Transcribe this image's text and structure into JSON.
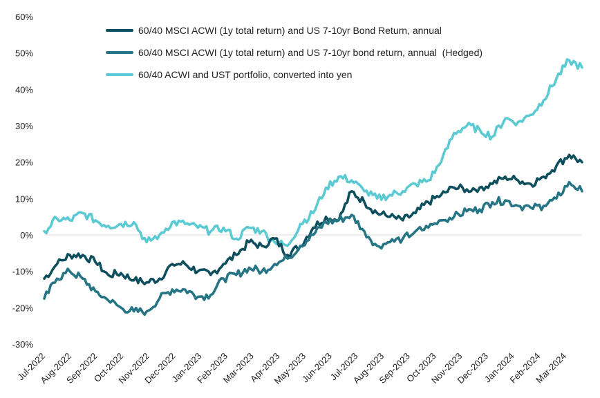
{
  "chart_data": {
    "type": "line",
    "title": "",
    "xlabel": "",
    "ylabel": "",
    "ylim": [
      -30,
      60
    ],
    "yticks": [
      -30,
      -20,
      -10,
      0,
      10,
      20,
      30,
      40,
      50,
      60
    ],
    "ytick_labels": [
      "-30%",
      "-20%",
      "-10%",
      "0%",
      "10%",
      "20%",
      "30%",
      "40%",
      "50%",
      "60%"
    ],
    "x_tick_labels": [
      "Jul-2022",
      "Aug-2022",
      "Sep-2022",
      "Oct-2022",
      "Nov-2022",
      "Dec-2022",
      "Jan-2023",
      "Feb-2023",
      "Mar-2023",
      "Apr-2023",
      "May-2023",
      "Jun-2023",
      "Jul-2023",
      "Aug-2023",
      "Sep-2023",
      "Oct-2023",
      "Nov-2023",
      "Dec-2023",
      "Jan-2024",
      "Feb-2024",
      "Mar-2024"
    ],
    "grid": false,
    "legend_position": "top-center",
    "x_points_note_months": "Jul-2022 .. Mar-2024 in half-month steps",
    "x": [
      "Jul-2022",
      "mid Jul-2022",
      "Aug-2022",
      "mid Aug-2022",
      "Sep-2022",
      "mid Sep-2022",
      "Oct-2022",
      "mid Oct-2022",
      "Nov-2022",
      "mid Nov-2022",
      "Dec-2022",
      "mid Dec-2022",
      "Jan-2023",
      "mid Jan-2023",
      "Feb-2023",
      "mid Feb-2023",
      "Mar-2023",
      "mid Mar-2023",
      "Apr-2023",
      "mid Apr-2023",
      "May-2023",
      "mid May-2023",
      "Jun-2023",
      "mid Jun-2023",
      "Jul-2023",
      "mid Jul-2023",
      "Aug-2023",
      "mid Aug-2023",
      "Sep-2023",
      "mid Sep-2023",
      "Oct-2023",
      "mid Oct-2023",
      "Nov-2023",
      "mid Nov-2023",
      "Dec-2023",
      "mid Dec-2023",
      "Jan-2024",
      "mid Jan-2024",
      "Feb-2024",
      "mid Feb-2024",
      "Mar-2024",
      "mid Mar-2024",
      "end Mar-2024"
    ],
    "series": [
      {
        "name": "60/40 MSCI ACWI (1y total return) and US 7-10yr Bond Return, annual",
        "color": "#0d4f5c",
        "values": [
          -12,
          -8,
          -5.5,
          -5.5,
          -7.5,
          -11,
          -10.5,
          -12.5,
          -13,
          -12,
          -8,
          -8,
          -10,
          -11,
          -8,
          -5.5,
          -2,
          -3,
          -1,
          -5.5,
          -3,
          2,
          5,
          4,
          12,
          9,
          6,
          5,
          4,
          6,
          9,
          11,
          13,
          12.5,
          13,
          14,
          16,
          15,
          14,
          16,
          19,
          22,
          20
        ]
      },
      {
        "name": "60/40 MSCI ACWI (1y total return) and US 7-10yr bond return, annual  (Hedged)",
        "color": "#267585",
        "values": [
          -17.5,
          -12,
          -10,
          -12,
          -15.5,
          -18,
          -20,
          -21,
          -21,
          -17.5,
          -15,
          -15,
          -17,
          -16.5,
          -12,
          -11,
          -9,
          -10,
          -8,
          -6.5,
          -3,
          0,
          3.5,
          4,
          5.5,
          1,
          -3,
          -2,
          -1,
          1,
          2,
          4,
          5,
          6.5,
          7,
          9,
          9.5,
          8,
          7.5,
          8,
          10,
          14.5,
          12
        ]
      },
      {
        "name": "60/40 ACWI and UST portfolio, converted into yen",
        "color": "#5ccad2",
        "values": [
          1,
          4.5,
          4,
          6,
          4,
          2.5,
          3,
          3.5,
          -2,
          0,
          3.5,
          3,
          2,
          1,
          2,
          -1,
          2,
          1,
          -2,
          -3,
          3,
          6,
          13,
          16,
          15,
          12,
          10,
          11,
          12,
          14,
          15,
          20,
          28,
          30,
          29,
          27,
          32,
          31,
          33,
          37,
          43,
          48,
          46
        ]
      }
    ]
  }
}
